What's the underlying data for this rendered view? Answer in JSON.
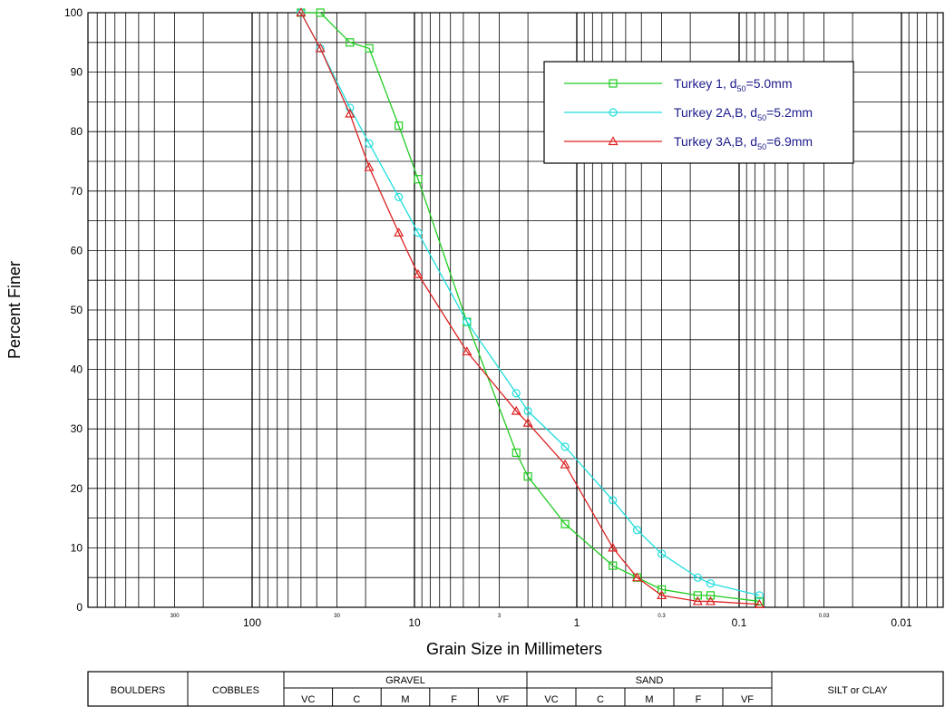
{
  "chart_data": {
    "type": "line",
    "xlabel": "Grain Size in Millimeters",
    "ylabel": "Percent Finer",
    "x_scale": "log-reversed",
    "xlim": [
      600,
      0.006
    ],
    "ylim": [
      0,
      100
    ],
    "y_ticks": [
      0,
      10,
      20,
      30,
      40,
      50,
      60,
      70,
      80,
      90,
      100
    ],
    "x_major_ticks": [
      {
        "value": 100,
        "label": "100"
      },
      {
        "value": 10,
        "label": "10"
      },
      {
        "value": 1,
        "label": "1"
      },
      {
        "value": 0.1,
        "label": "0.1"
      },
      {
        "value": 0.01,
        "label": "0.01"
      }
    ],
    "x_minor_ticks": [
      {
        "value": 300,
        "label": "300"
      },
      {
        "value": 30,
        "label": "30"
      },
      {
        "value": 3,
        "label": "3"
      },
      {
        "value": 0.3,
        "label": "0.3"
      },
      {
        "value": 0.03,
        "label": "0.03"
      }
    ],
    "grid": true,
    "legend_position": "top-right",
    "series": [
      {
        "name_prefix": "Turkey 1, d",
        "name_sub": "50",
        "name_suffix": "=5.0mm",
        "color": "#22cc22",
        "marker": "square",
        "x": [
          50,
          38,
          25,
          19,
          12.5,
          9.5,
          4.75,
          2.36,
          2,
          1.18,
          0.6,
          0.425,
          0.3,
          0.18,
          0.15,
          0.075
        ],
        "y": [
          100,
          100,
          95,
          94,
          81,
          72,
          48,
          26,
          22,
          14,
          7,
          5,
          3,
          2,
          2,
          1
        ]
      },
      {
        "name_prefix": "Turkey 2A,B, d",
        "name_sub": "50",
        "name_suffix": "=5.2mm",
        "color": "#22dddd",
        "marker": "circle",
        "x": [
          50,
          38,
          25,
          19,
          12.5,
          9.5,
          4.75,
          2.36,
          2,
          1.18,
          0.6,
          0.425,
          0.3,
          0.18,
          0.15,
          0.075
        ],
        "y": [
          100,
          94,
          84,
          78,
          69,
          63,
          48,
          36,
          33,
          27,
          18,
          13,
          9,
          5,
          4,
          2
        ]
      },
      {
        "name_prefix": "Turkey 3A,B, d",
        "name_sub": "50",
        "name_suffix": "=6.9mm",
        "color": "#dd2222",
        "marker": "triangle",
        "x": [
          50,
          38,
          25,
          19,
          12.5,
          9.5,
          4.75,
          2.36,
          2,
          1.18,
          0.6,
          0.425,
          0.3,
          0.18,
          0.15,
          0.075
        ],
        "y": [
          100,
          94,
          83,
          74,
          63,
          56,
          43,
          33,
          31,
          24,
          10,
          5,
          2,
          1,
          1,
          0.5
        ]
      }
    ]
  },
  "classification": {
    "boulders": "BOULDERS",
    "cobbles": "COBBLES",
    "gravel": "GRAVEL",
    "sand": "SAND",
    "silt_clay": "SILT or CLAY",
    "gravel_sub": [
      "VC",
      "C",
      "M",
      "F",
      "VF"
    ],
    "sand_sub": [
      "VC",
      "C",
      "M",
      "F",
      "VF"
    ],
    "gravel_bounds": [
      64,
      32,
      16,
      8,
      4,
      2
    ],
    "sand_bounds": [
      2,
      1,
      0.5,
      0.25,
      0.125,
      0.0625
    ]
  }
}
